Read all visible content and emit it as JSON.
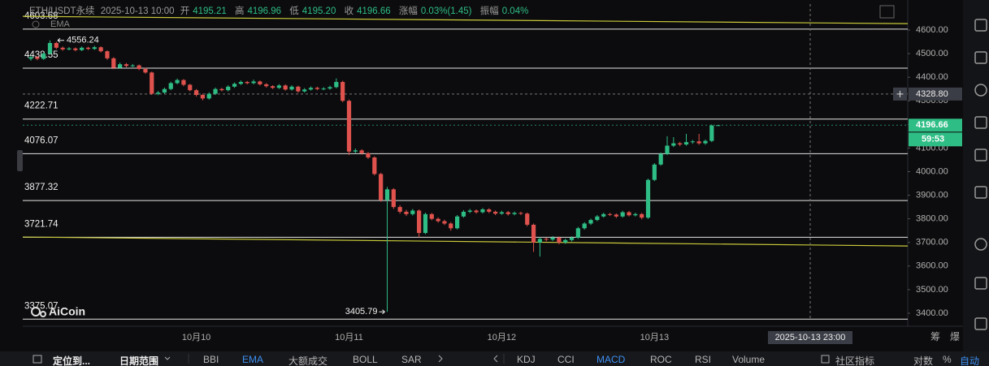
{
  "header": {
    "symbol": "ETH/USDT永续",
    "time": "2025-10-13 10:00",
    "open_label": "开",
    "open": "4195.21",
    "high_label": "高",
    "high": "4196.96",
    "low_label": "低",
    "low": "4195.20",
    "close_label": "收",
    "close": "4196.66",
    "change_label": "涨幅",
    "change": "0.03%(1.45)",
    "amplitude_label": "振幅",
    "amplitude": "0.04%"
  },
  "indicator": "EMA",
  "watermark": "AiCoin",
  "chart_data": {
    "type": "candlestick",
    "categories": [
      null,
      null,
      null,
      null,
      null,
      null,
      null,
      null,
      null,
      null,
      null,
      null,
      null,
      null,
      null,
      null,
      null,
      null,
      null,
      null,
      null,
      null,
      null,
      null,
      null,
      null,
      "10月10",
      null,
      null,
      null,
      null,
      null,
      null,
      null,
      null,
      null,
      null,
      null,
      null,
      null,
      null,
      null,
      null,
      null,
      null,
      null,
      null,
      null,
      null,
      null,
      "10月11",
      null,
      null,
      null,
      null,
      null,
      null,
      null,
      null,
      null,
      null,
      null,
      null,
      null,
      null,
      null,
      null,
      null,
      null,
      null,
      null,
      null,
      null,
      null,
      "10月12",
      null,
      null,
      null,
      null,
      null,
      null,
      null,
      null,
      null,
      null,
      null,
      null,
      null,
      null,
      null,
      null,
      null,
      null,
      null,
      null,
      null,
      null,
      null,
      "10月13",
      null,
      null,
      null,
      null,
      null,
      null,
      null,
      null,
      null,
      null
    ],
    "open": [
      4478,
      4485,
      4478,
      4500,
      4545,
      4525,
      4518,
      4522,
      4515,
      4525,
      4520,
      4527,
      4510,
      4480,
      4440,
      4455,
      4448,
      4450,
      4435,
      4420,
      4330,
      4335,
      4350,
      4375,
      4388,
      4368,
      4345,
      4325,
      4310,
      4330,
      4350,
      4345,
      4360,
      4372,
      4380,
      4375,
      4382,
      4370,
      4362,
      4355,
      4365,
      4348,
      4360,
      4340,
      4348,
      4355,
      4350,
      4352,
      4358,
      4380,
      4300,
      4085,
      4090,
      4078,
      4060,
      3990,
      3880,
      3925,
      3850,
      3830,
      3820,
      3835,
      3740,
      3820,
      3800,
      3790,
      3780,
      3760,
      3810,
      3830,
      3835,
      3828,
      3840,
      3830,
      3822,
      3828,
      3820,
      3825,
      3822,
      3775,
      3700,
      3715,
      3712,
      3720,
      3700,
      3710,
      3720,
      3760,
      3780,
      3795,
      3810,
      3820,
      3818,
      3810,
      3828,
      3815,
      3820,
      3805,
      3965,
      4030,
      4075,
      4110,
      4120,
      4115,
      4125,
      4128,
      4120,
      4130,
      4195.21
    ],
    "high": [
      4492,
      4490,
      4506,
      4556.24,
      4550,
      4530,
      4528,
      4526,
      4530,
      4529,
      4533,
      4531,
      4514,
      4485,
      4462,
      4460,
      4456,
      4454,
      4440,
      4424,
      4342,
      4356,
      4381,
      4394,
      4392,
      4372,
      4350,
      4330,
      4336,
      4356,
      4355,
      4366,
      4378,
      4386,
      4384,
      4390,
      4386,
      4375,
      4366,
      4371,
      4370,
      4366,
      4364,
      4354,
      4361,
      4360,
      4358,
      4364,
      4395,
      4385,
      4305,
      4098,
      4095,
      4083,
      4065,
      3995,
      3935,
      3930,
      3858,
      3838,
      3842,
      3840,
      3826,
      3825,
      3806,
      3796,
      3786,
      3816,
      3837,
      3842,
      3840,
      3846,
      3845,
      3835,
      3834,
      3833,
      3831,
      3830,
      3827,
      3780,
      3722,
      3720,
      3727,
      3725,
      3716,
      3726,
      3766,
      3786,
      3801,
      3816,
      3826,
      3825,
      3823,
      3834,
      3833,
      3826,
      3825,
      3970,
      4036,
      4081,
      4150,
      4146,
      4126,
      4160,
      4134,
      4160,
      4136,
      4200,
      4196.96
    ],
    "low": [
      4470,
      4472,
      4474,
      4496,
      4519,
      4512,
      4514,
      4510,
      4511,
      4515,
      4516,
      4505,
      4474,
      4434,
      4436,
      4442,
      4443,
      4430,
      4415,
      4325,
      4324,
      4330,
      4345,
      4370,
      4362,
      4340,
      4318,
      4302,
      4305,
      4325,
      4340,
      4340,
      4355,
      4367,
      4370,
      4370,
      4365,
      4356,
      4350,
      4350,
      4343,
      4343,
      4334,
      4335,
      4343,
      4345,
      4345,
      4347,
      4353,
      4294,
      4070,
      4078,
      4072,
      4054,
      3984,
      3872,
      3405.79,
      3842,
      3822,
      3812,
      3814,
      3722,
      3735,
      3794,
      3784,
      3774,
      3750,
      3755,
      3805,
      3824,
      3822,
      3823,
      3824,
      3816,
      3817,
      3814,
      3815,
      3816,
      3768,
      3660,
      3640,
      3705,
      3706,
      3692,
      3694,
      3704,
      3715,
      3754,
      3774,
      3790,
      3805,
      3812,
      3804,
      3805,
      3810,
      3810,
      3798,
      3800,
      3960,
      4025,
      4070,
      4104,
      4108,
      4110,
      4118,
      4114,
      4114,
      4125,
      4195.2
    ],
    "close": [
      4485,
      4478,
      4500,
      4545,
      4525,
      4518,
      4522,
      4515,
      4525,
      4520,
      4527,
      4510,
      4480,
      4440,
      4455,
      4448,
      4450,
      4435,
      4420,
      4330,
      4335,
      4350,
      4375,
      4388,
      4368,
      4345,
      4325,
      4310,
      4330,
      4350,
      4345,
      4360,
      4372,
      4380,
      4375,
      4382,
      4370,
      4362,
      4355,
      4365,
      4348,
      4360,
      4340,
      4348,
      4355,
      4350,
      4352,
      4358,
      4380,
      4300,
      4085,
      4090,
      4078,
      4060,
      3990,
      3880,
      3925,
      3850,
      3830,
      3820,
      3835,
      3740,
      3820,
      3800,
      3790,
      3780,
      3760,
      3810,
      3830,
      3835,
      3828,
      3840,
      3830,
      3822,
      3828,
      3820,
      3825,
      3822,
      3775,
      3700,
      3715,
      3712,
      3720,
      3700,
      3710,
      3720,
      3760,
      3780,
      3795,
      3810,
      3820,
      3818,
      3810,
      3828,
      3815,
      3820,
      3805,
      3965,
      4030,
      4075,
      4110,
      4120,
      4115,
      4125,
      4128,
      4120,
      4130,
      4195.21,
      4196.66
    ],
    "up_color": "#2ebd85",
    "down_color": "#e0524d",
    "ylim": [
      3369,
      4710
    ],
    "yticks": [
      {
        "value": 3400,
        "label": "3400.00"
      },
      {
        "value": 3500,
        "label": "3500.00"
      },
      {
        "value": 3600,
        "label": "3600.00"
      },
      {
        "value": 3700,
        "label": "3700.00"
      },
      {
        "value": 3800,
        "label": "3800.00"
      },
      {
        "value": 3900,
        "label": "3900.00"
      },
      {
        "value": 4000,
        "label": "4000.00"
      },
      {
        "value": 4100,
        "label": "4100.00"
      },
      {
        "value": 4200,
        "label": "4200.00"
      },
      {
        "value": 4300,
        "label": "4300.00"
      },
      {
        "value": 4400,
        "label": "4400.00"
      },
      {
        "value": 4500,
        "label": "4500.00"
      },
      {
        "value": 4600,
        "label": "4600.00"
      }
    ],
    "hlines": [
      4603.68,
      4438.55,
      4222.71,
      4076.07,
      3877.32,
      3721.74,
      3375.07
    ],
    "hline_color": "#e6e6e6",
    "trendlines": [
      {
        "values": [
          4658,
          4627
        ]
      },
      {
        "values": [
          3723,
          3685
        ]
      }
    ],
    "trendline_color": "#c9c93a",
    "crosshair": {
      "price": {
        "value": 4328.8,
        "label": "4328.80"
      },
      "time": "2025-10-13 23:00"
    },
    "countdown": "59:53",
    "axis_extras": [
      "筹",
      "爆"
    ]
  },
  "toolbar": [
    {
      "text": "定位到..."
    },
    {
      "text": "日期范围"
    },
    {
      "text": "BBI"
    },
    {
      "text": "EMA",
      "active": true
    },
    {
      "text": "大额成交"
    },
    {
      "text": "BOLL"
    },
    {
      "text": "SAR"
    },
    {
      "text": "KDJ"
    },
    {
      "text": "CCI"
    },
    {
      "text": "MACD",
      "active": true
    },
    {
      "text": "ROC"
    },
    {
      "text": "RSI"
    },
    {
      "text": "Volume"
    },
    {
      "text": "社区指标"
    },
    {
      "text": "对数"
    },
    {
      "text": "%"
    },
    {
      "text": "自动",
      "active": true
    }
  ]
}
